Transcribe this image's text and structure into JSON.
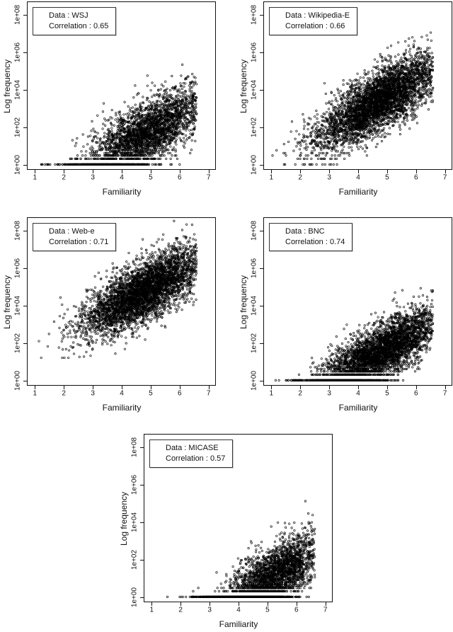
{
  "page": {
    "background": "#ffffff",
    "figure_type": "five-panel scatter figure"
  },
  "chart_data": [
    {
      "type": "scatter",
      "dataset": "WSJ",
      "correlation": 0.65,
      "legend_lines": [
        "Data : WSJ",
        "Correlation : 0.65"
      ],
      "xlabel": "Familiarity",
      "ylabel": "Log frequency",
      "x_ticks": [
        "1",
        "2",
        "3",
        "4",
        "5",
        "6",
        "7"
      ],
      "y_ticks": [
        {
          "label": "1e+00",
          "decade": 0
        },
        {
          "label": "1e+02",
          "decade": 2
        },
        {
          "label": "1e+04",
          "decade": 4
        },
        {
          "label": "1e+06",
          "decade": 6
        },
        {
          "label": "1e+08",
          "decade": 8
        }
      ],
      "xlim": [
        0.76,
        7.24
      ],
      "ylim_log_decades": [
        -0.25,
        8.65
      ],
      "marker": "open-circle",
      "marker_color": "#000000",
      "cloud_model": {
        "seed": 11,
        "n": 3200,
        "x_mean": 4.85,
        "x_sd": 1.05,
        "x_min": 1.05,
        "x_max": 6.6,
        "ylog_intercept": -2.5,
        "ylog_slope": 0.85,
        "ylog_sd": 0.85,
        "ylog_min": 0,
        "ylog_max": 6.9,
        "integer_snap_below": 0.95
      }
    },
    {
      "type": "scatter",
      "dataset": "Wikipedia-E",
      "correlation": 0.66,
      "legend_lines": [
        "Data : Wikipedia-E",
        "Correlation : 0.66"
      ],
      "xlabel": "Familiarity",
      "ylabel": "Log frequency",
      "x_ticks": [
        "1",
        "2",
        "3",
        "4",
        "5",
        "6",
        "7"
      ],
      "y_ticks": [
        {
          "label": "1e+00",
          "decade": 0
        },
        {
          "label": "1e+02",
          "decade": 2
        },
        {
          "label": "1e+04",
          "decade": 4
        },
        {
          "label": "1e+06",
          "decade": 6
        },
        {
          "label": "1e+08",
          "decade": 8
        }
      ],
      "xlim": [
        0.76,
        7.24
      ],
      "ylim_log_decades": [
        -0.25,
        8.65
      ],
      "marker": "open-circle",
      "marker_color": "#000000",
      "cloud_model": {
        "seed": 22,
        "n": 4200,
        "x_mean": 4.75,
        "x_sd": 1.1,
        "x_min": 1.05,
        "x_max": 6.6,
        "ylog_intercept": -0.9,
        "ylog_slope": 0.9,
        "ylog_sd": 0.8,
        "ylog_min": 0,
        "ylog_max": 7.9,
        "integer_snap_below": 0.7
      }
    },
    {
      "type": "scatter",
      "dataset": "Web-e",
      "correlation": 0.71,
      "legend_lines": [
        "Data : Web-e",
        "Correlation : 0.71"
      ],
      "xlabel": "Familiarity",
      "ylabel": "Log frequency",
      "x_ticks": [
        "1",
        "2",
        "3",
        "4",
        "5",
        "6",
        "7"
      ],
      "y_ticks": [
        {
          "label": "1e+00",
          "decade": 0
        },
        {
          "label": "1e+02",
          "decade": 2
        },
        {
          "label": "1e+04",
          "decade": 4
        },
        {
          "label": "1e+06",
          "decade": 6
        },
        {
          "label": "1e+08",
          "decade": 8
        }
      ],
      "xlim": [
        0.76,
        7.24
      ],
      "ylim_log_decades": [
        -0.25,
        8.65
      ],
      "marker": "open-circle",
      "marker_color": "#000000",
      "cloud_model": {
        "seed": 33,
        "n": 4200,
        "x_mean": 4.8,
        "x_sd": 1.05,
        "x_min": 1.0,
        "x_max": 6.6,
        "ylog_intercept": 0.9,
        "ylog_slope": 0.8,
        "ylog_sd": 0.78,
        "ylog_min": 1.2,
        "ylog_max": 8.5,
        "integer_snap_below": -1
      }
    },
    {
      "type": "scatter",
      "dataset": "BNC",
      "correlation": 0.74,
      "legend_lines": [
        "Data : BNC",
        "Correlation : 0.74"
      ],
      "xlabel": "Familiarity",
      "ylabel": "Log frequency",
      "x_ticks": [
        "1",
        "2",
        "3",
        "4",
        "5",
        "6",
        "7"
      ],
      "y_ticks": [
        {
          "label": "1e+00",
          "decade": 0
        },
        {
          "label": "1e+02",
          "decade": 2
        },
        {
          "label": "1e+04",
          "decade": 4
        },
        {
          "label": "1e+06",
          "decade": 6
        },
        {
          "label": "1e+08",
          "decade": 8
        }
      ],
      "xlim": [
        0.76,
        7.24
      ],
      "ylim_log_decades": [
        -0.25,
        8.65
      ],
      "marker": "open-circle",
      "marker_color": "#000000",
      "cloud_model": {
        "seed": 44,
        "n": 4200,
        "x_mean": 4.75,
        "x_sd": 1.1,
        "x_min": 1.0,
        "x_max": 6.6,
        "ylog_intercept": -2.6,
        "ylog_slope": 0.85,
        "ylog_sd": 0.75,
        "ylog_min": 0,
        "ylog_max": 6.6,
        "integer_snap_below": 0.95
      }
    },
    {
      "type": "scatter",
      "dataset": "MICASE",
      "correlation": 0.57,
      "legend_lines": [
        "Data : MICASE",
        "Correlation : 0.57"
      ],
      "xlabel": "Familiarity",
      "ylabel": "Log frequency",
      "x_ticks": [
        "1",
        "2",
        "3",
        "4",
        "5",
        "6",
        "7"
      ],
      "y_ticks": [
        {
          "label": "1e+00",
          "decade": 0
        },
        {
          "label": "1e+02",
          "decade": 2
        },
        {
          "label": "1e+04",
          "decade": 4
        },
        {
          "label": "1e+06",
          "decade": 6
        },
        {
          "label": "1e+08",
          "decade": 8
        }
      ],
      "xlim": [
        0.76,
        7.24
      ],
      "ylim_log_decades": [
        -0.25,
        8.65
      ],
      "marker": "open-circle",
      "marker_color": "#000000",
      "cloud_model": {
        "seed": 55,
        "n": 3800,
        "x_mean": 5.0,
        "x_sd": 0.95,
        "x_min": 1.3,
        "x_max": 6.65,
        "ylog_intercept": -4.6,
        "ylog_slope": 1.05,
        "ylog_sd": 0.85,
        "ylog_min": 0,
        "ylog_max": 5.1,
        "integer_snap_below": 1.0
      }
    }
  ]
}
